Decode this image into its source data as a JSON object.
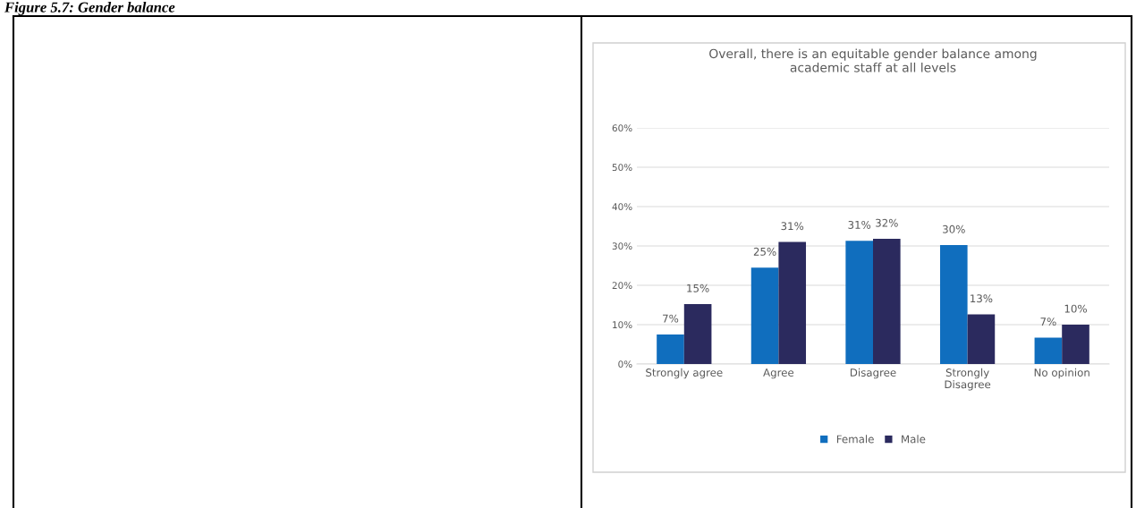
{
  "chart_data": {
    "type": "bar",
    "title": "Overall, there is an equitable gender balance among\nacademic staff at all levels",
    "annotations": [
      "Figure 5.7: Gender balance"
    ],
    "categories": [
      "Strongly agree",
      "Agree",
      "Disagree",
      "Strongly\nDisagree",
      "No opinion"
    ],
    "series": [
      {
        "name": "Female",
        "color": "#106ebe",
        "values": [
          7.5,
          24.5,
          31.3,
          30.2,
          6.7
        ],
        "value_labels": [
          "7%",
          "25%",
          "31%",
          "30%",
          "7%"
        ]
      },
      {
        "name": "Male",
        "color": "#2b2a5e",
        "values": [
          15.2,
          31.0,
          31.8,
          12.6,
          10.0
        ],
        "value_labels": [
          "15%",
          "31%",
          "32%",
          "13%",
          "10%"
        ]
      }
    ],
    "ylim": [
      0,
      60
    ],
    "yticks": [
      {
        "value": 0,
        "label": "0%"
      },
      {
        "value": 10,
        "label": "10%"
      },
      {
        "value": 20,
        "label": "20%"
      },
      {
        "value": 30,
        "label": "30%"
      },
      {
        "value": 40,
        "label": "40%"
      },
      {
        "value": 50,
        "label": "50%"
      },
      {
        "value": 60,
        "label": "60%"
      }
    ],
    "grid": "y",
    "legend": "bottom"
  }
}
